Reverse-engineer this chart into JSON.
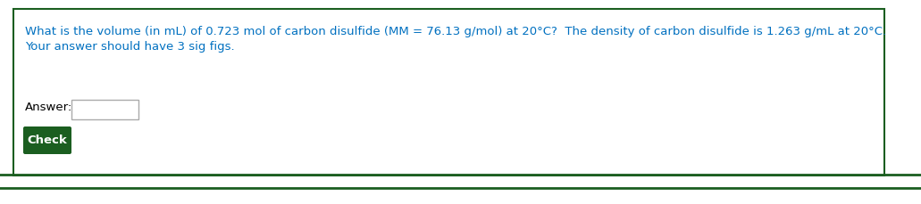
{
  "question_line": "What is the volume (in mL) of 0.723 mol of carbon disulfide (MM = 76.13 g/mol) at 20°C?  The density of carbon disulfide is 1.263 g/mL at 20°C.",
  "instruction_line": "Your answer should have 3 sig figs.",
  "answer_label": "Answer:",
  "button_text": "Check",
  "text_color": "#E87722",
  "text_color2": "#0070C0",
  "button_bg_color": "#1B5E20",
  "button_text_color": "#FFFFFF",
  "border_color": "#1B5E20",
  "bg_color": "#FFFFFF",
  "outer_bg_color": "#FFFFFF",
  "font_size": 9.5,
  "answer_font_size": 9.5,
  "button_font_size": 9.5
}
